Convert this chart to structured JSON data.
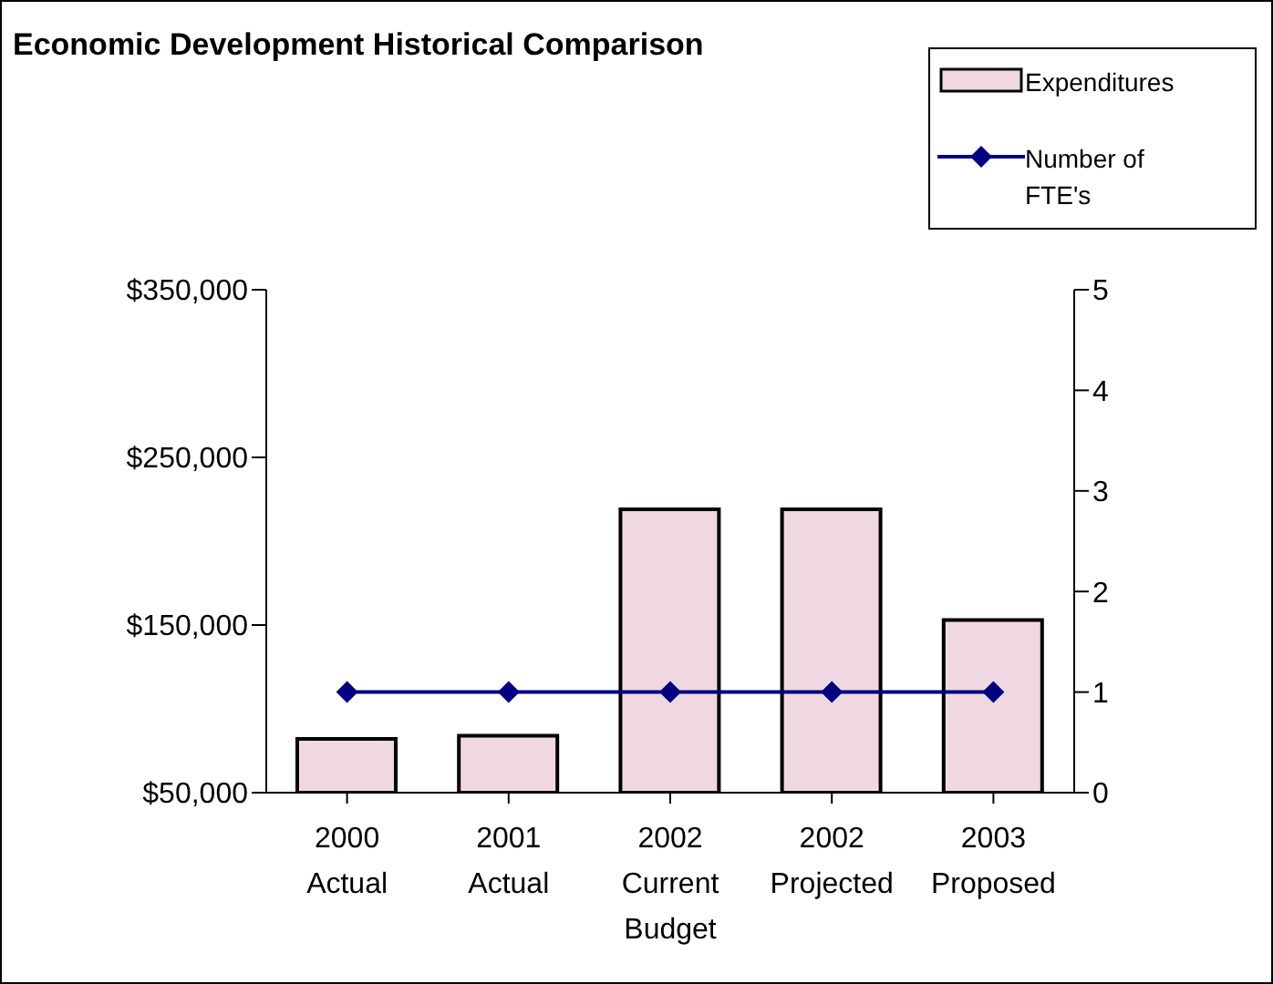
{
  "chart_data": {
    "type": "bar",
    "title": "Economic Development Historical Comparison",
    "categories": [
      "2000 Actual",
      "2001 Actual",
      "2002 Current Budget",
      "2002 Projected",
      "2003 Proposed"
    ],
    "series": [
      {
        "name": "Expenditures",
        "color": "#f0d8e2",
        "values": [
          82000,
          84000,
          219000,
          219000,
          153000
        ]
      },
      {
        "name": "Number of FTE's",
        "type": "line",
        "axis": "y2",
        "color": "#000080",
        "marker": "diamond",
        "values": [
          1,
          1,
          1,
          1,
          1
        ]
      }
    ],
    "ylim": [
      50000,
      350000
    ],
    "yticks": [
      {
        "value": 50000,
        "label": "$50,000"
      },
      {
        "value": 150000,
        "label": "$150,000"
      },
      {
        "value": 250000,
        "label": "$250,000"
      },
      {
        "value": 350000,
        "label": "$350,000"
      }
    ],
    "y2lim": [
      0,
      5
    ],
    "y2ticks": [
      0,
      1,
      2,
      3,
      4,
      5
    ],
    "grid": false,
    "legend": "top right"
  }
}
